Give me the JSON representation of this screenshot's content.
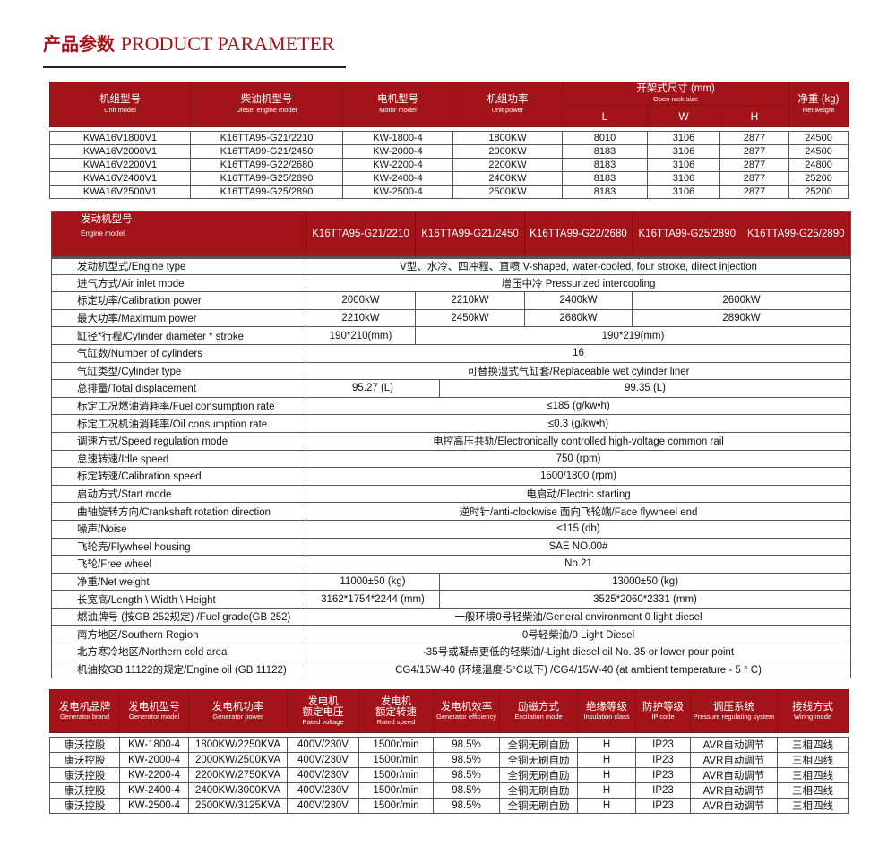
{
  "title": {
    "cn": "产品参数",
    "en": "PRODUCT PARAMETER"
  },
  "colors": {
    "accent": "#a3131a"
  },
  "unit_table": {
    "headers": [
      {
        "cn": "机组型号",
        "en": "Unit model"
      },
      {
        "cn": "柴油机型号",
        "en": "Diesel engine model"
      },
      {
        "cn": "电机型号",
        "en": "Motor model"
      },
      {
        "cn": "机组功率",
        "en": "Unit power"
      },
      {
        "cn": "开架式尺寸 (mm)",
        "en": "Open rack size"
      },
      {
        "cn": "净重 (kg)",
        "en": "Net weight"
      }
    ],
    "sub_headers": [
      "L",
      "W",
      "H"
    ],
    "rows": [
      [
        "KWA16V1800V1",
        "K16TTA95-G21/2210",
        "KW-1800-4",
        "1800KW",
        "8010",
        "3106",
        "2877",
        "24500"
      ],
      [
        "KWA16V2000V1",
        "K16TTA99-G21/2450",
        "KW-2000-4",
        "2000KW",
        "8183",
        "3106",
        "2877",
        "24500"
      ],
      [
        "KWA16V2200V1",
        "K16TTA99-G22/2680",
        "KW-2200-4",
        "2200KW",
        "8183",
        "3106",
        "2877",
        "24800"
      ],
      [
        "KWA16V2400V1",
        "K16TTA99-G25/2890",
        "KW-2400-4",
        "2400KW",
        "8183",
        "3106",
        "2877",
        "25200"
      ],
      [
        "KWA16V2500V1",
        "K16TTA99-G25/2890",
        "KW-2500-4",
        "2500KW",
        "8183",
        "3106",
        "2877",
        "25200"
      ]
    ]
  },
  "engine_table": {
    "header": {
      "cn": "发动机型号",
      "en": "Engine model",
      "models": [
        "K16TTA95-G21/2210",
        "K16TTA99-G21/2450",
        "K16TTA99-G22/2680",
        "K16TTA99-G25/2890",
        "K16TTA99-G25/2890"
      ]
    },
    "rows": [
      {
        "label": "发动机型式/Engine type",
        "values": [
          "V型、水冷、四冲程、直喷  V-shaped, water-cooled, four stroke, direct injection"
        ]
      },
      {
        "label": "进气方式/Air inlet mode",
        "values": [
          "增压中冷 Pressurized intercooling"
        ]
      },
      {
        "label": "标定功率/Calibration power",
        "values": [
          "2000kW",
          "2210kW",
          "2400kW",
          "2600kW"
        ]
      },
      {
        "label": "最大功率/Maximum power",
        "values": [
          "2210kW",
          "2450kW",
          "2680kW",
          "2890kW"
        ]
      },
      {
        "label": "缸径*行程/Cylinder diameter * stroke",
        "values": [
          "190*210(mm)",
          "190*219(mm)"
        ]
      },
      {
        "label": "气缸数/Number of cylinders",
        "values": [
          "16"
        ]
      },
      {
        "label": "气缸类型/Cylinder type",
        "values": [
          "可替换湿式气缸套/Replaceable wet cylinder liner"
        ]
      },
      {
        "label": "总排量/Total displacement",
        "values": [
          "95.27 (L)",
          "99.35 (L)"
        ]
      },
      {
        "label": "标定工况燃油消耗率/Fuel consumption rate",
        "values": [
          "≤185 (g/kw•h)"
        ]
      },
      {
        "label": "标定工况机油消耗率/Oil consumption rate",
        "values": [
          "≤0.3 (g/kw•h)"
        ]
      },
      {
        "label": "调速方式/Speed regulation mode",
        "values": [
          "电控高压共轨/Electronically controlled high-voltage common rail"
        ]
      },
      {
        "label": "怠速转速/Idle speed",
        "values": [
          "750 (rpm)"
        ]
      },
      {
        "label": "标定转速/Calibration speed",
        "values": [
          "1500/1800 (rpm)"
        ]
      },
      {
        "label": "启动方式/Start mode",
        "values": [
          "电启动/Electric starting"
        ]
      },
      {
        "label": "曲轴旋转方向/Crankshaft rotation direction",
        "values": [
          "逆时针/anti-clockwise 面向飞轮端/Face flywheel end"
        ]
      },
      {
        "label": "噪声/Noise",
        "values": [
          "≤115 (db)"
        ]
      },
      {
        "label": "飞轮壳/Flywheel housing",
        "values": [
          "SAE NO.00#"
        ]
      },
      {
        "label": "飞轮/Free wheel",
        "values": [
          "No.21"
        ]
      },
      {
        "label": "净重/Net weight",
        "values": [
          "11000±50 (kg)",
          "13000±50 (kg)"
        ]
      },
      {
        "label": "长宽高/Length \\ Width \\ Height",
        "values": [
          "3162*1754*2244 (mm)",
          "3525*2060*2331 (mm)"
        ]
      },
      {
        "label": "燃油牌号 (按GB 252规定) /Fuel grade(GB 252)",
        "values": [
          "一般环境0号轻柴油/General environment 0 light diesel"
        ]
      },
      {
        "label": "南方地区/Southern Region",
        "values": [
          "0号轻柴油/0 Light Diesel"
        ]
      },
      {
        "label": "北方寒冷地区/Northern cold area",
        "values": [
          "-35号或凝点更低的轻柴油/-Light diesel oil No. 35 or lower pour point"
        ]
      },
      {
        "label": "机油按GB 11122的规定/Engine oil (GB 11122)",
        "values": [
          "CG4/15W-40 (环境温度-5°C以下) /CG4/15W-40 (at ambient temperature - 5 ° C)"
        ]
      }
    ]
  },
  "generator_table": {
    "headers": [
      {
        "cn": "发电机品牌",
        "en": "Generator brand"
      },
      {
        "cn": "发电机型号",
        "en": "Generator model"
      },
      {
        "cn": "发电机功率",
        "en": "Generator power"
      },
      {
        "cn": "发电机\n额定电压",
        "en": "Rated voltage"
      },
      {
        "cn": "发电机\n额定转速",
        "en": "Rated speed"
      },
      {
        "cn": "发电机效率",
        "en": "Generator efficiency"
      },
      {
        "cn": "励磁方式",
        "en": "Excitation mode"
      },
      {
        "cn": "绝缘等级",
        "en": "Insulation class"
      },
      {
        "cn": "防护等级",
        "en": "IP code"
      },
      {
        "cn": "调压系统",
        "en": "Pressure regulating system"
      },
      {
        "cn": "接线方式",
        "en": "Wiring mode"
      }
    ],
    "rows": [
      [
        "康沃控股",
        "KW-1800-4",
        "1800KW/2250KVA",
        "400V/230V",
        "1500r/min",
        "98.5%",
        "全铜无刷自励",
        "H",
        "IP23",
        "AVR自动调节",
        "三相四线"
      ],
      [
        "康沃控股",
        "KW-2000-4",
        "2000KW/2500KVA",
        "400V/230V",
        "1500r/min",
        "98.5%",
        "全铜无刷自励",
        "H",
        "IP23",
        "AVR自动调节",
        "三相四线"
      ],
      [
        "康沃控股",
        "KW-2200-4",
        "2200KW/2750KVA",
        "400V/230V",
        "1500r/min",
        "98.5%",
        "全铜无刷自励",
        "H",
        "IP23",
        "AVR自动调节",
        "三相四线"
      ],
      [
        "康沃控股",
        "KW-2400-4",
        "2400KW/3000KVA",
        "400V/230V",
        "1500r/min",
        "98.5%",
        "全铜无刷自励",
        "H",
        "IP23",
        "AVR自动调节",
        "三相四线"
      ],
      [
        "康沃控股",
        "KW-2500-4",
        "2500KW/3125KVA",
        "400V/230V",
        "1500r/min",
        "98.5%",
        "全铜无刷自励",
        "H",
        "IP23",
        "AVR自动调节",
        "三相四线"
      ]
    ]
  }
}
